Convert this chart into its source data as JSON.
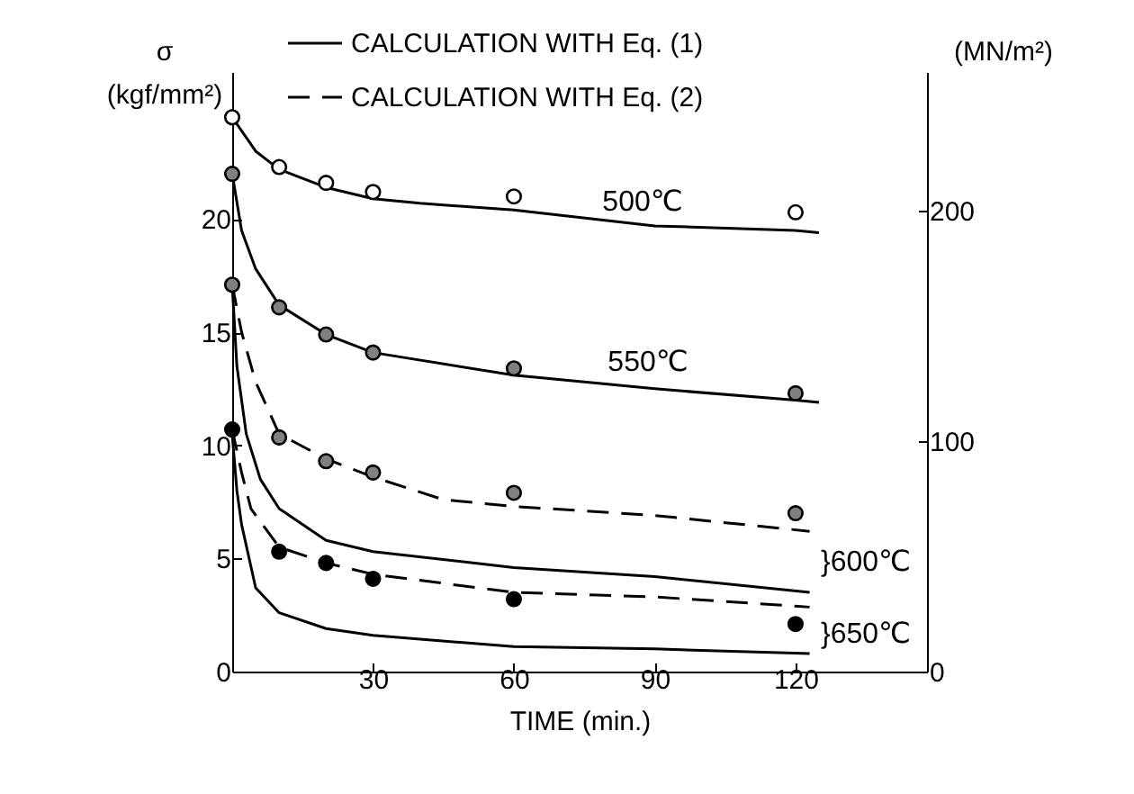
{
  "chart_data": {
    "type": "line",
    "xlabel": "TIME (min.)",
    "ylabel": "σ\n(kgf/mm²)",
    "y2label": "(MN/m²)",
    "xlim": [
      0,
      148
    ],
    "xticks": [
      30,
      60,
      90,
      120
    ],
    "ylim": [
      0,
      26.5
    ],
    "yticks": [
      0,
      5,
      10,
      15,
      20
    ],
    "y2lim": [
      0,
      260
    ],
    "y2ticks": [
      0,
      100,
      200
    ],
    "grid": false,
    "legend": "top",
    "series": [
      {
        "name": "CALCULATION WITH Eq. (1)",
        "line_style": "solid",
        "color": "#000000",
        "x": [
          0,
          5,
          10,
          20,
          30,
          40,
          60,
          90,
          120,
          125
        ],
        "values": [
          24.5,
          23.0,
          22.2,
          21.4,
          20.9,
          20.7,
          20.4,
          19.7,
          19.5,
          19.4
        ]
      },
      {
        "line_style": "solid",
        "color": "#000000",
        "x": [
          0,
          2,
          5,
          10,
          20,
          30,
          60,
          90,
          120,
          125
        ],
        "values": [
          22.0,
          19.5,
          17.8,
          16.2,
          14.9,
          14.1,
          13.1,
          12.5,
          12.0,
          11.9
        ]
      },
      {
        "name": "CALCULATION WITH Eq. (2)",
        "line_style": "dashed",
        "color": "#000000",
        "x": [
          0,
          2,
          5,
          10,
          20,
          30,
          45,
          60,
          90,
          123
        ],
        "values": [
          17.1,
          15.0,
          12.8,
          10.5,
          9.4,
          8.6,
          7.6,
          7.3,
          6.9,
          6.2
        ]
      },
      {
        "line_style": "solid",
        "color": "#000000",
        "x": [
          0,
          1,
          3,
          6,
          10,
          20,
          30,
          60,
          90,
          123
        ],
        "values": [
          17.1,
          13.5,
          10.5,
          8.5,
          7.2,
          5.8,
          5.3,
          4.6,
          4.2,
          3.5
        ]
      },
      {
        "line_style": "dashed",
        "color": "#000000",
        "x": [
          0,
          2,
          4,
          10,
          20,
          30,
          45,
          60,
          90,
          123
        ],
        "values": [
          10.7,
          8.8,
          7.2,
          5.5,
          4.8,
          4.3,
          3.9,
          3.5,
          3.3,
          2.85
        ]
      },
      {
        "line_style": "solid",
        "color": "#000000",
        "x": [
          0,
          1,
          2,
          5,
          10,
          20,
          30,
          60,
          90,
          123
        ],
        "values": [
          10.5,
          8.0,
          6.5,
          3.7,
          2.6,
          1.9,
          1.6,
          1.1,
          1.0,
          0.8
        ]
      },
      {
        "type": "scatter",
        "marker": "circle",
        "color": "#ffffff",
        "x": [
          0,
          10,
          20,
          30,
          60,
          120
        ],
        "values": [
          24.5,
          22.3,
          21.6,
          21.2,
          21.0,
          20.3
        ]
      },
      {
        "type": "scatter",
        "marker": "circle",
        "color": "#808080",
        "x": [
          0,
          10,
          20,
          30,
          60,
          120
        ],
        "values": [
          22.0,
          16.1,
          14.9,
          14.1,
          13.4,
          12.3
        ]
      },
      {
        "type": "scatter",
        "marker": "circle",
        "color": "#808080",
        "x": [
          0,
          10,
          20,
          30,
          60,
          120
        ],
        "values": [
          17.1,
          10.35,
          9.3,
          8.8,
          7.9,
          7.0
        ]
      },
      {
        "type": "scatter",
        "marker": "circle",
        "color": "#000000",
        "x": [
          0,
          10,
          20,
          30,
          60,
          120
        ],
        "values": [
          10.7,
          5.3,
          4.8,
          4.1,
          3.2,
          2.1
        ]
      }
    ],
    "annotations": [
      "500℃",
      "550℃",
      "}600℃",
      "}650℃"
    ]
  }
}
